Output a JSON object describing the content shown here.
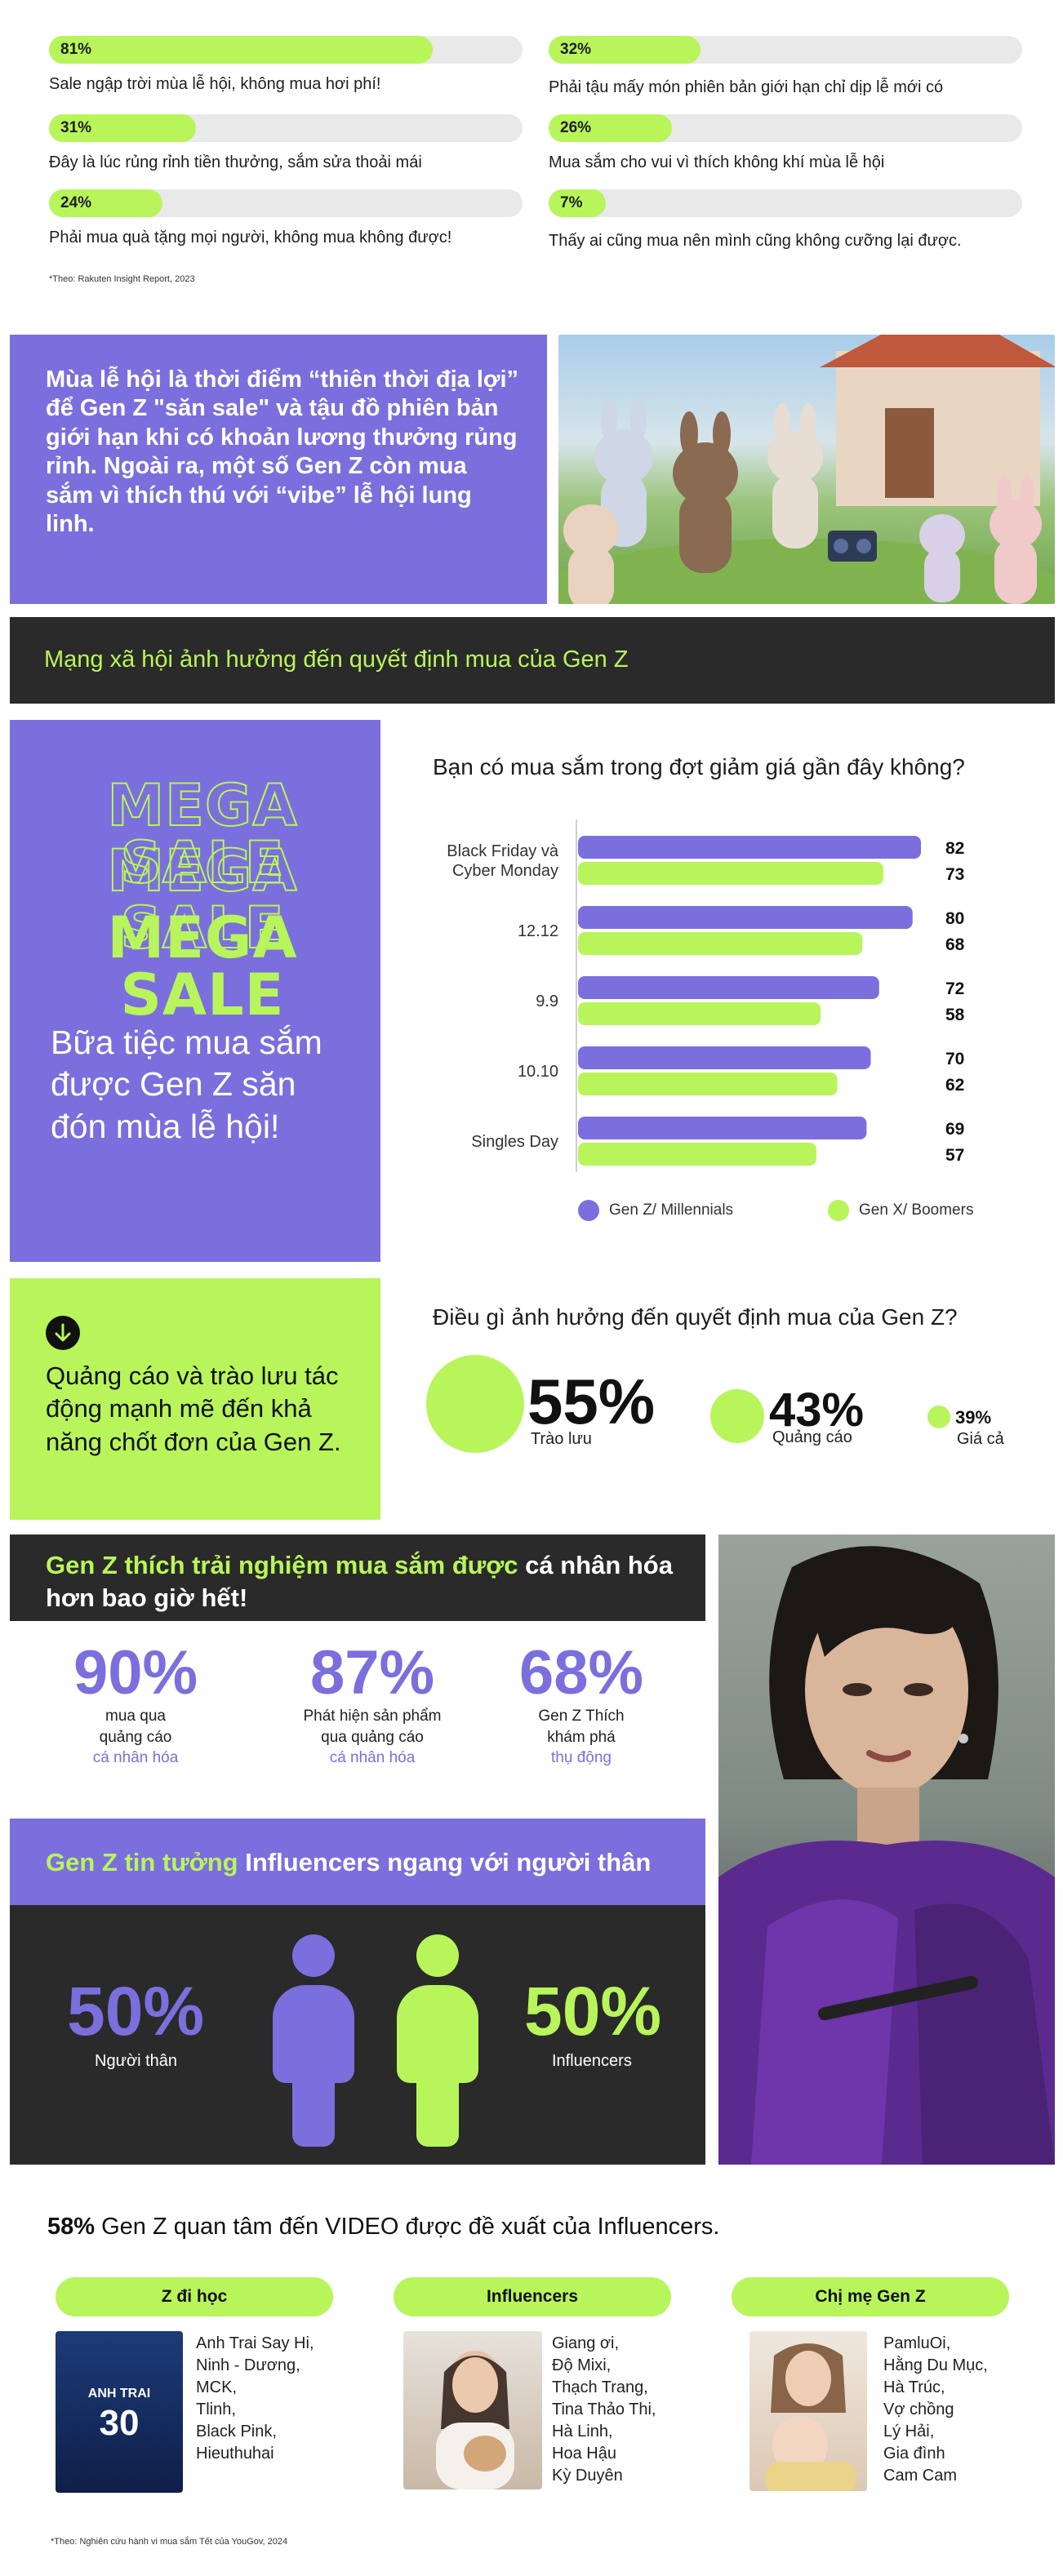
{
  "top_stats": [
    {
      "pct": "81%",
      "value": 81,
      "desc": "Sale ngập trời mùa lễ hội, không mua hơi phí!"
    },
    {
      "pct": "32%",
      "value": 32,
      "desc": "Phải tậu mấy món phiên bản giới hạn chỉ dịp lễ mới có"
    },
    {
      "pct": "31%",
      "value": 31,
      "desc": "Đây là lúc rủng rỉnh tiền thưởng, sắm sửa thoải mái"
    },
    {
      "pct": "26%",
      "value": 26,
      "desc": "Mua sắm cho vui vì thích không khí mùa lễ hội"
    },
    {
      "pct": "24%",
      "value": 24,
      "desc": "Phải mua quà tặng mọi người, không mua không được!"
    },
    {
      "pct": "7%",
      "value": 7,
      "desc": "Thấy ai cũng mua nên mình cũng không cưỡng lại được."
    }
  ],
  "source_note_1": "*Theo: Rakuten Insight Report, 2023",
  "intro_banner": "Mùa lễ hội là thời điểm “thiên thời địa lợi” để Gen Z \"săn sale\" và tậu đồ phiên bản giới hạn khi có khoản lương thưởng rủng rỉnh. Ngoài ra, một số Gen Z còn mua sắm vì thích thú với “vibe” lễ hội lung linh.",
  "section_social": "Mạng xã hội ảnh hưởng đến quyết định mua của Gen Z",
  "mega_sale": "MEGA SALE",
  "mega_caption": "Bữa tiệc mua sắm được Gen Z săn đón mùa lễ hội!",
  "chart_data": {
    "type": "bar",
    "orientation": "horizontal",
    "title": "Bạn có mua sắm trong đợt giảm giá gần đây không?",
    "categories": [
      "Black Friday và Cyber Monday",
      "12.12",
      "9.9",
      "10.10",
      "Singles Day"
    ],
    "category_lines": [
      [
        "Black Friday và",
        "Cyber Monday"
      ],
      [
        "12.12"
      ],
      [
        "9.9"
      ],
      [
        "10.10"
      ],
      [
        "Singles Day"
      ]
    ],
    "series": [
      {
        "name": "Gen Z/ Millennials",
        "values": [
          82,
          80,
          72,
          70,
          69
        ],
        "color": "#7b6fde"
      },
      {
        "name": "Gen X/ Boomers",
        "values": [
          73,
          68,
          58,
          62,
          57
        ],
        "color": "#b8f55a"
      }
    ],
    "legend": "bottom"
  },
  "callout": "Quảng cáo và trào lưu tác động mạnh mẽ đến khả năng chốt đơn của Gen Z.",
  "influence": {
    "title": "Điều gì ảnh hưởng đến quyết định mua của Gen Z?",
    "items": [
      {
        "pct": "55%",
        "label": "Trào lưu",
        "value": 55
      },
      {
        "pct": "43%",
        "label": "Quảng cáo",
        "value": 43
      },
      {
        "pct": "39%",
        "label": "Giá cả",
        "value": 39
      }
    ]
  },
  "personal": {
    "title_lime": "Gen Z thích trải nghiệm mua sắm được",
    "title_white": "cá nhân hóa hơn bao giờ hết!",
    "stats": [
      {
        "pct": "90%",
        "line1": "mua qua",
        "line2": "quảng cáo",
        "hl": "cá nhân hóa"
      },
      {
        "pct": "87%",
        "line1": "Phát hiện sản phẩm",
        "line2": "qua quảng cáo",
        "hl": "cá nhân hóa"
      },
      {
        "pct": "68%",
        "line1": "Gen Z Thích",
        "line2": "khám phá",
        "hl": "thụ động"
      }
    ]
  },
  "trust": {
    "title_lime": "Gen Z tin tưởng",
    "title_white": "Influencers ngang với người thân",
    "left_pct": "50%",
    "left_label": "Người thân",
    "right_pct": "50%",
    "right_label": "Influencers",
    "left_value": 50,
    "right_value": 50
  },
  "video_line_bold": "58%",
  "video_line_rest": "Gen Z quan tâm đến VIDEO được đề xuất của Influencers.",
  "groups": [
    {
      "tag": "Z đi học",
      "names": [
        "Anh Trai Say Hi,",
        "Ninh - Dương,",
        "MCK,",
        "Tlinh,",
        "Black Pink,",
        "Hieuthuhai"
      ]
    },
    {
      "tag": "Influencers",
      "names": [
        "Giang ơi,",
        "Độ Mixi,",
        "Thạch Trang,",
        "Tina Thảo Thi,",
        "Hà Linh,",
        "Hoa Hậu",
        "Kỳ Duyên"
      ]
    },
    {
      "tag": "Chị mẹ Gen Z",
      "names": [
        "PamluOi,",
        "Hằng Du Mục,",
        "Hà Trúc,",
        "Vợ chồng",
        "Lý Hải,",
        "Gia đình",
        "Cam Cam"
      ]
    }
  ],
  "poster_text": "ANH TRAI",
  "poster_num": "30",
  "source_note_2": "*Theo: Nghiên cứu hành vi mua sắm Tết của YouGov, 2024"
}
